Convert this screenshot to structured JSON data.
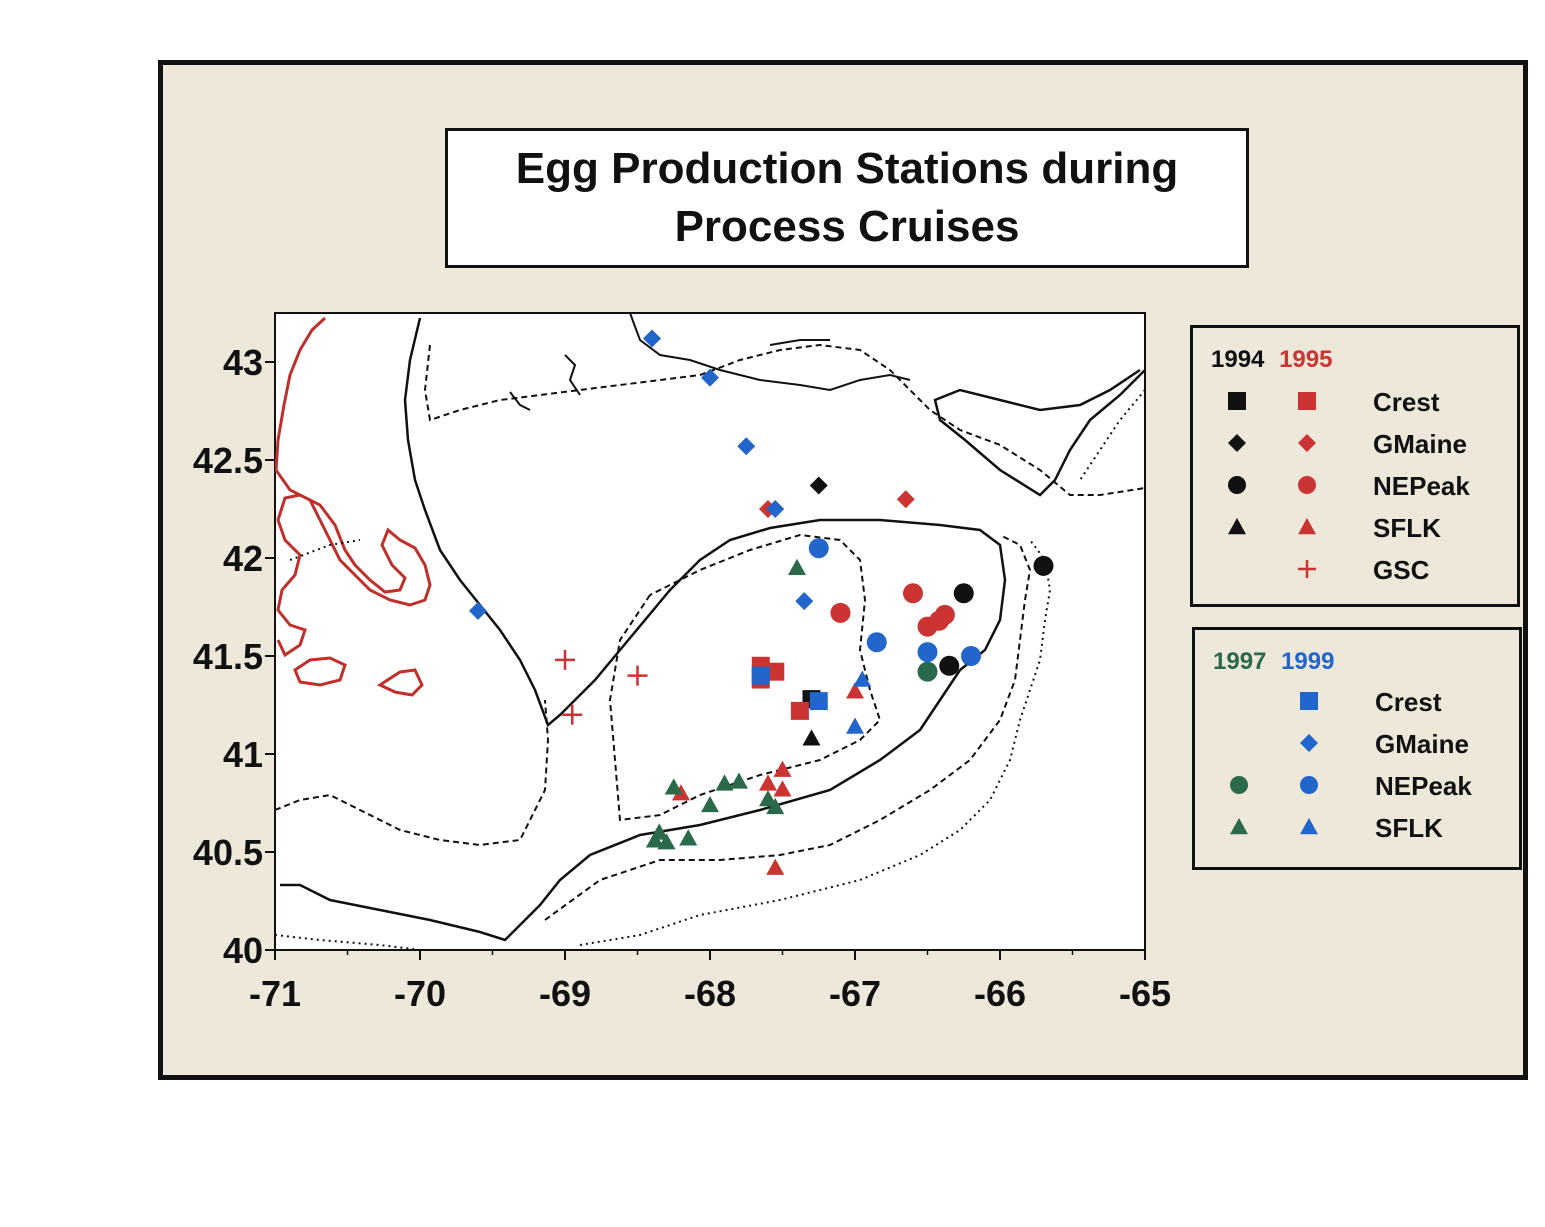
{
  "title": {
    "line1": "Egg Production Stations during",
    "line2": "Process Cruises"
  },
  "colors": {
    "y1994": "#111111",
    "y1995": "#cc3333",
    "y1997": "#2a6a4a",
    "y1999": "#2266cc",
    "land_red": "#c0302a"
  },
  "legend1": {
    "year_a": "1994",
    "year_b": "1995",
    "rows": [
      {
        "label": "Crest",
        "shape": "square",
        "a": true,
        "b": true
      },
      {
        "label": "GMaine",
        "shape": "diamond",
        "a": true,
        "b": true
      },
      {
        "label": "NEPeak",
        "shape": "circle",
        "a": true,
        "b": true
      },
      {
        "label": "SFLK",
        "shape": "triangle",
        "a": true,
        "b": true
      },
      {
        "label": "GSC",
        "shape": "plus",
        "a": false,
        "b": true
      }
    ]
  },
  "legend2": {
    "year_a": "1997",
    "year_b": "1999",
    "rows": [
      {
        "label": "Crest",
        "shape": "square",
        "a": false,
        "b": true
      },
      {
        "label": "GMaine",
        "shape": "diamond",
        "a": false,
        "b": true
      },
      {
        "label": "NEPeak",
        "shape": "circle",
        "a": true,
        "b": true
      },
      {
        "label": "SFLK",
        "shape": "triangle",
        "a": true,
        "b": true
      }
    ]
  },
  "map": {
    "x_ticks": [
      "-71",
      "-70",
      "-69",
      "-68",
      "-67",
      "-66",
      "-65"
    ],
    "y_ticks": [
      "40",
      "40.5",
      "41",
      "41.5",
      "42",
      "42.5",
      "43"
    ],
    "xlim": [
      -71,
      -65
    ],
    "ylim": [
      40,
      43.25
    ]
  },
  "stations": [
    {
      "year": "1994",
      "type": "Crest",
      "lon": -67.3,
      "lat": 41.28
    },
    {
      "year": "1994",
      "type": "GMaine",
      "lon": -67.25,
      "lat": 42.37
    },
    {
      "year": "1994",
      "type": "NEPeak",
      "lon": -65.7,
      "lat": 41.96
    },
    {
      "year": "1994",
      "type": "NEPeak",
      "lon": -66.25,
      "lat": 41.82
    },
    {
      "year": "1994",
      "type": "NEPeak",
      "lon": -66.35,
      "lat": 41.45
    },
    {
      "year": "1994",
      "type": "SFLK",
      "lon": -67.3,
      "lat": 41.08
    },
    {
      "year": "1995",
      "type": "Crest",
      "lon": -67.65,
      "lat": 41.45
    },
    {
      "year": "1995",
      "type": "Crest",
      "lon": -67.55,
      "lat": 41.42
    },
    {
      "year": "1995",
      "type": "Crest",
      "lon": -67.65,
      "lat": 41.38
    },
    {
      "year": "1995",
      "type": "Crest",
      "lon": -67.38,
      "lat": 41.22
    },
    {
      "year": "1995",
      "type": "GMaine",
      "lon": -67.6,
      "lat": 42.25
    },
    {
      "year": "1995",
      "type": "GMaine",
      "lon": -66.65,
      "lat": 42.3
    },
    {
      "year": "1995",
      "type": "NEPeak",
      "lon": -67.1,
      "lat": 41.72
    },
    {
      "year": "1995",
      "type": "NEPeak",
      "lon": -66.6,
      "lat": 41.82
    },
    {
      "year": "1995",
      "type": "NEPeak",
      "lon": -66.5,
      "lat": 41.65
    },
    {
      "year": "1995",
      "type": "NEPeak",
      "lon": -66.42,
      "lat": 41.68
    },
    {
      "year": "1995",
      "type": "NEPeak",
      "lon": -66.38,
      "lat": 41.71
    },
    {
      "year": "1995",
      "type": "SFLK",
      "lon": -67.5,
      "lat": 40.92
    },
    {
      "year": "1995",
      "type": "SFLK",
      "lon": -67.6,
      "lat": 40.85
    },
    {
      "year": "1995",
      "type": "SFLK",
      "lon": -67.5,
      "lat": 40.82
    },
    {
      "year": "1995",
      "type": "SFLK",
      "lon": -68.2,
      "lat": 40.8
    },
    {
      "year": "1995",
      "type": "SFLK",
      "lon": -67.55,
      "lat": 40.42
    },
    {
      "year": "1995",
      "type": "SFLK",
      "lon": -67.0,
      "lat": 41.32
    },
    {
      "year": "1995",
      "type": "GSC",
      "lon": -69.0,
      "lat": 41.48
    },
    {
      "year": "1995",
      "type": "GSC",
      "lon": -68.5,
      "lat": 41.4
    },
    {
      "year": "1995",
      "type": "GSC",
      "lon": -68.95,
      "lat": 41.2
    },
    {
      "year": "1997",
      "type": "NEPeak",
      "lon": -66.5,
      "lat": 41.42
    },
    {
      "year": "1997",
      "type": "SFLK",
      "lon": -67.4,
      "lat": 41.95
    },
    {
      "year": "1997",
      "type": "SFLK",
      "lon": -68.25,
      "lat": 40.83
    },
    {
      "year": "1997",
      "type": "SFLK",
      "lon": -67.9,
      "lat": 40.85
    },
    {
      "year": "1997",
      "type": "SFLK",
      "lon": -67.8,
      "lat": 40.86
    },
    {
      "year": "1997",
      "type": "SFLK",
      "lon": -68.0,
      "lat": 40.74
    },
    {
      "year": "1997",
      "type": "SFLK",
      "lon": -67.6,
      "lat": 40.77
    },
    {
      "year": "1997",
      "type": "SFLK",
      "lon": -67.55,
      "lat": 40.73
    },
    {
      "year": "1997",
      "type": "SFLK",
      "lon": -68.35,
      "lat": 40.6
    },
    {
      "year": "1997",
      "type": "SFLK",
      "lon": -68.38,
      "lat": 40.56
    },
    {
      "year": "1997",
      "type": "SFLK",
      "lon": -68.3,
      "lat": 40.55
    },
    {
      "year": "1997",
      "type": "SFLK",
      "lon": -68.15,
      "lat": 40.57
    },
    {
      "year": "1999",
      "type": "Crest",
      "lon": -67.65,
      "lat": 41.4
    },
    {
      "year": "1999",
      "type": "Crest",
      "lon": -67.25,
      "lat": 41.27
    },
    {
      "year": "1999",
      "type": "GMaine",
      "lon": -68.4,
      "lat": 43.12
    },
    {
      "year": "1999",
      "type": "GMaine",
      "lon": -68.0,
      "lat": 42.92
    },
    {
      "year": "1999",
      "type": "GMaine",
      "lon": -67.75,
      "lat": 42.57
    },
    {
      "year": "1999",
      "type": "GMaine",
      "lon": -67.55,
      "lat": 42.25
    },
    {
      "year": "1999",
      "type": "GMaine",
      "lon": -69.6,
      "lat": 41.73
    },
    {
      "year": "1999",
      "type": "GMaine",
      "lon": -67.35,
      "lat": 41.78
    },
    {
      "year": "1999",
      "type": "NEPeak",
      "lon": -67.25,
      "lat": 42.05
    },
    {
      "year": "1999",
      "type": "NEPeak",
      "lon": -66.85,
      "lat": 41.57
    },
    {
      "year": "1999",
      "type": "NEPeak",
      "lon": -66.5,
      "lat": 41.52
    },
    {
      "year": "1999",
      "type": "NEPeak",
      "lon": -66.2,
      "lat": 41.5
    },
    {
      "year": "1999",
      "type": "SFLK",
      "lon": -66.95,
      "lat": 41.38
    },
    {
      "year": "1999",
      "type": "SFLK",
      "lon": -67.0,
      "lat": 41.14
    }
  ]
}
